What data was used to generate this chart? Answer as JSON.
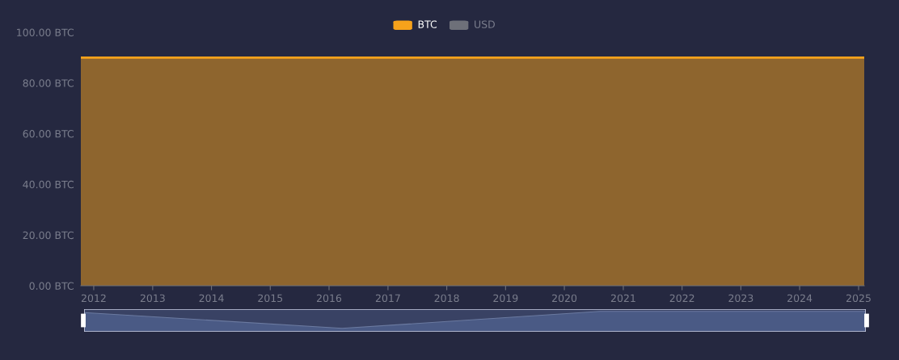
{
  "chart_data": {
    "type": "area",
    "x": [
      "2011-10-13",
      "2025-02-05"
    ],
    "series": [
      {
        "name": "BTC",
        "color": "#f7a21b",
        "values": [
          90,
          90
        ]
      },
      {
        "name": "USD",
        "color": "#6e7079",
        "values": [
          null,
          null
        ]
      }
    ],
    "xlim": [
      "2011-10-13",
      "2025-02-05"
    ],
    "xticks": [
      "2012",
      "2013",
      "2014",
      "2015",
      "2016",
      "2017",
      "2018",
      "2019",
      "2020",
      "2021",
      "2022",
      "2023",
      "2024",
      "2025"
    ],
    "ylim": [
      0,
      100
    ],
    "yticks": [
      {
        "value": 0,
        "label": "0.00 BTC"
      },
      {
        "value": 20,
        "label": "20.00 BTC"
      },
      {
        "value": 40,
        "label": "40.00 BTC"
      },
      {
        "value": 60,
        "label": "60.00 BTC"
      },
      {
        "value": 80,
        "label": "80.00 BTC"
      },
      {
        "value": 100,
        "label": "100.00 BTC"
      }
    ],
    "grid": false,
    "legend": "top"
  }
}
